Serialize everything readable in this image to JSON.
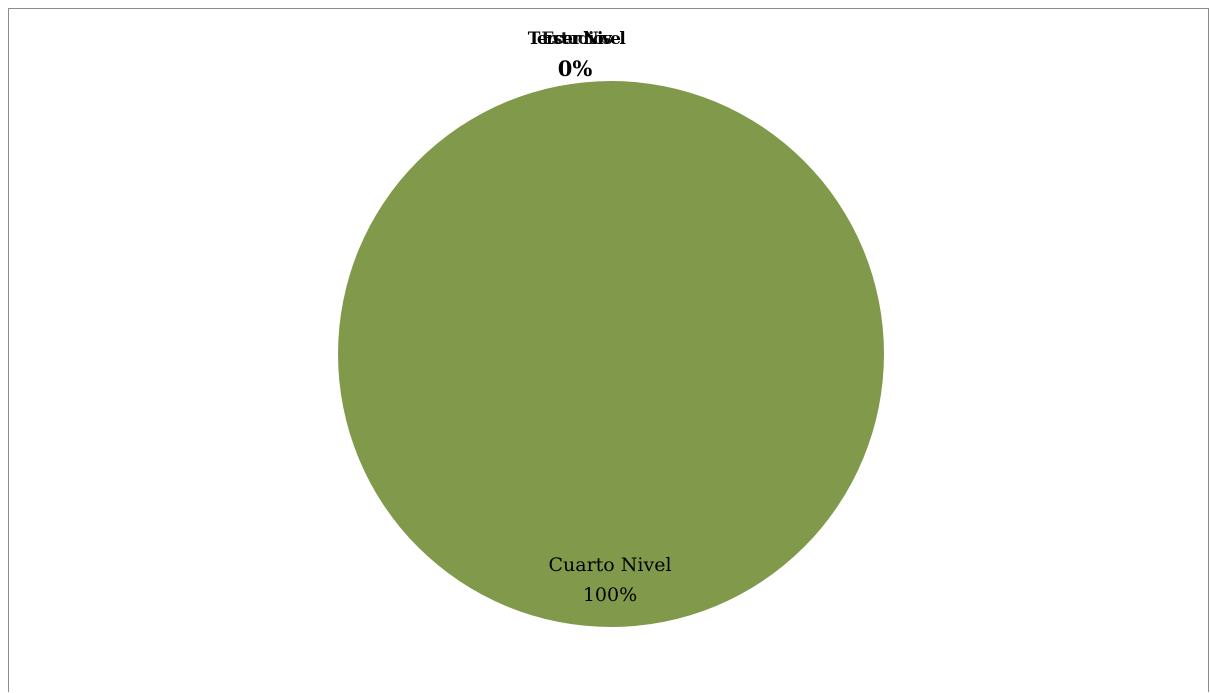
{
  "chart_data": {
    "type": "pie",
    "slices": [
      {
        "label": "Tercer Nivel",
        "value": 0,
        "percent_label": "0%",
        "color": "#c0504d"
      },
      {
        "label": "Cuarto Nivel",
        "value": 100,
        "percent_label": "100%",
        "color": "#80994a"
      }
    ],
    "overlapping_label": "Estudios",
    "legend": "none"
  }
}
